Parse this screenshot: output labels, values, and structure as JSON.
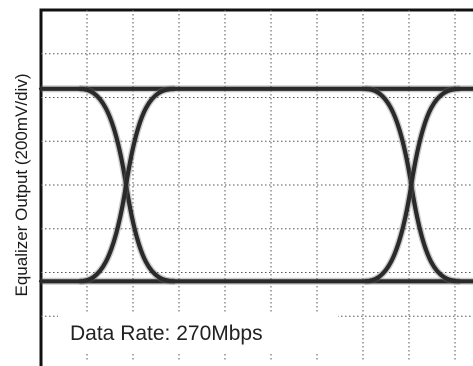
{
  "chart_data": {
    "type": "line",
    "subtype": "eye-diagram",
    "ylabel": "Equalizer Output (200mV/div)",
    "xlabel": "",
    "annotation": "Data Rate: 270Mbps",
    "grid": true,
    "divisions": {
      "x": 10,
      "y": 8
    },
    "ylim": [
      -800,
      800
    ],
    "y_unit": "mV",
    "levels_mV": {
      "high": 440,
      "low": -440
    },
    "crossings_div": [
      1.85,
      8.05
    ],
    "trace_color": "#2a2a2a"
  }
}
